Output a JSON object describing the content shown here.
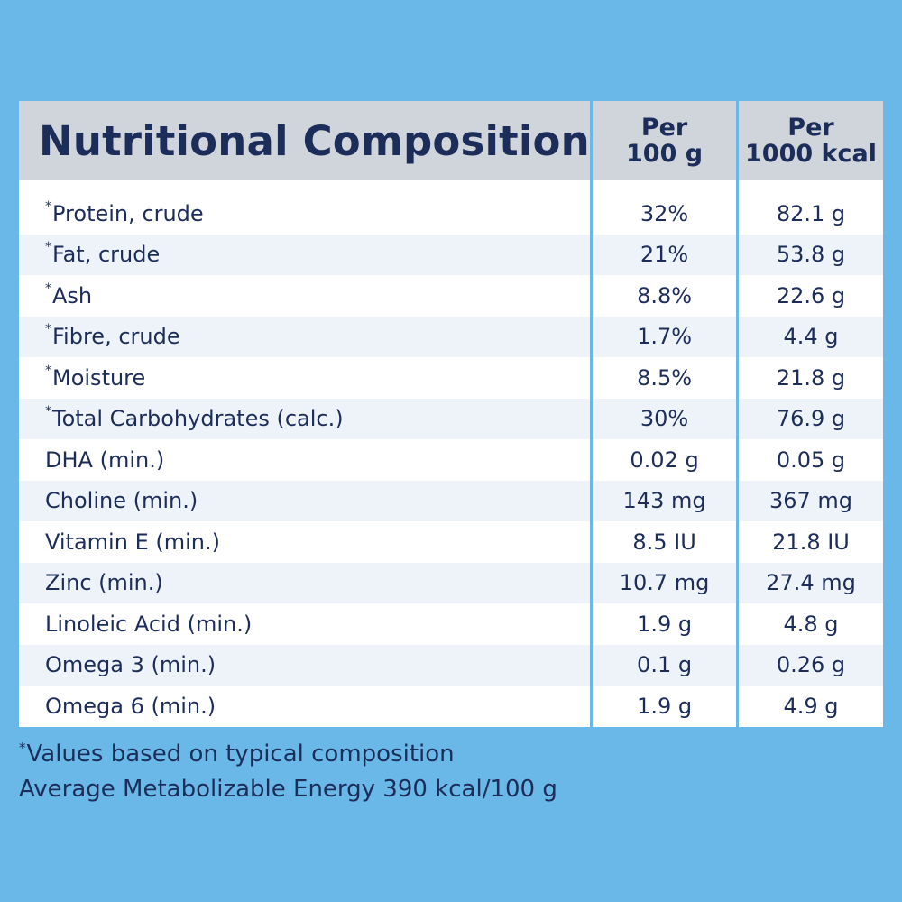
{
  "title": "Nutritional Composition",
  "columns": {
    "per100_line1": "Per",
    "per100_line2": "100 g",
    "per1000_line1": "Per",
    "per1000_line2": "1000 kcal"
  },
  "rows": [
    {
      "star": "*",
      "name": "Protein, crude",
      "per100": "32%",
      "per1000": "82.1 g"
    },
    {
      "star": "*",
      "name": "Fat, crude",
      "per100": "21%",
      "per1000": "53.8 g"
    },
    {
      "star": "*",
      "name": "Ash",
      "per100": "8.8%",
      "per1000": "22.6 g"
    },
    {
      "star": "*",
      "name": "Fibre, crude",
      "per100": "1.7%",
      "per1000": "4.4 g"
    },
    {
      "star": "*",
      "name": "Moisture",
      "per100": "8.5%",
      "per1000": "21.8 g"
    },
    {
      "star": "*",
      "name": "Total Carbohydrates (calc.)",
      "per100": "30%",
      "per1000": "76.9 g"
    },
    {
      "star": "",
      "name": "DHA (min.)",
      "per100": "0.02 g",
      "per1000": "0.05 g"
    },
    {
      "star": "",
      "name": "Choline (min.)",
      "per100": "143 mg",
      "per1000": "367 mg"
    },
    {
      "star": "",
      "name": "Vitamin E (min.)",
      "per100": "8.5 IU",
      "per1000": "21.8 IU"
    },
    {
      "star": "",
      "name": "Zinc (min.)",
      "per100": "10.7 mg",
      "per1000": "27.4 mg"
    },
    {
      "star": "",
      "name": "Linoleic Acid (min.)",
      "per100": "1.9 g",
      "per1000": "4.8 g"
    },
    {
      "star": "",
      "name": "Omega 3 (min.)",
      "per100": "0.1 g",
      "per1000": "0.26 g"
    },
    {
      "star": "",
      "name": "Omega 6 (min.)",
      "per100": "1.9 g",
      "per1000": "4.9 g"
    }
  ],
  "footnote": {
    "star": "*",
    "line1": "Values based on typical composition",
    "line2": "Average Metabolizable Energy 390 kcal/100 g"
  },
  "colors": {
    "background": "#69b8e8",
    "header": "#d0d5dc",
    "text": "#1d2d5a",
    "row_alt": "#eef3f9"
  }
}
